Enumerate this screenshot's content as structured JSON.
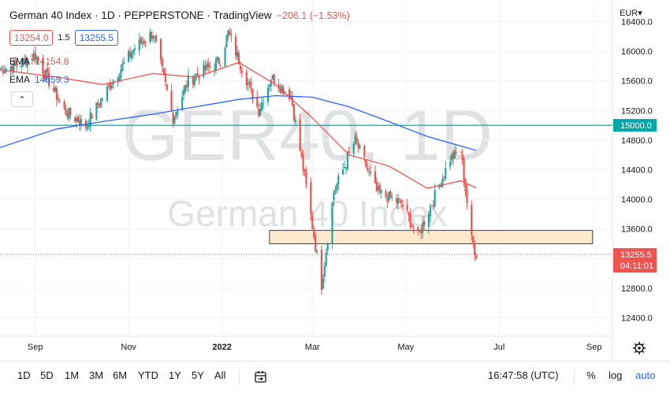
{
  "header": {
    "title": "German 40 Index · 1D · PEPPERSTONE · TradingView",
    "change": "−206.1 (−1.53%)",
    "sell_price": "13254.0",
    "spread": "1.5",
    "buy_price": "13255.5"
  },
  "ema_legend": [
    {
      "label": "EMA",
      "value": "14154.8",
      "color": "#ef5350"
    },
    {
      "label": "EMA",
      "value": "14659.3",
      "color": "#2962ff"
    }
  ],
  "collapse_glyph": "⌃",
  "currency": "EUR▾",
  "watermark": {
    "symbol": "GER40, 1D",
    "description": "German 40 Index"
  },
  "price_labels": {
    "level": "15000.0",
    "last": "13255.5",
    "countdown": "04:11:01"
  },
  "colors": {
    "up": "#26a69a",
    "down": "#ef5350",
    "ema_fast": "#ef5350",
    "ema_slow": "#2962ff",
    "level_line": "#00a8a8",
    "zone_fill": "#ffe9cc",
    "zone_border": "#444444"
  },
  "bottom_bar": {
    "timeframes": [
      "1D",
      "5D",
      "1M",
      "3M",
      "6M",
      "YTD",
      "1Y",
      "5Y",
      "All"
    ],
    "clock": "16:47:58 (UTC)",
    "percent": "%",
    "log": "log",
    "auto": "auto",
    "compare_icon": "calendar-range-icon"
  },
  "chart_data": {
    "type": "candlestick",
    "y_axis": {
      "ticks": [
        12400,
        12800,
        13200,
        13600,
        14000,
        14400,
        14800,
        15200,
        15600,
        16000,
        16400
      ],
      "tick_labels": [
        "12400.0",
        "12800.0",
        "13200.0",
        "13600.0",
        "14000.0",
        "14400.0",
        "14800.0",
        "15200.0",
        "15600.0",
        "16000.0",
        "16400.0"
      ],
      "range": [
        12150,
        16650
      ]
    },
    "x_axis": {
      "tick_labels": [
        "Sep",
        "Nov",
        "2022",
        "Mar",
        "May",
        "Jul",
        "Sep"
      ],
      "range_dates": [
        "2021-08-09",
        "2022-09-13"
      ],
      "tick_dates": [
        "2021-09-01",
        "2021-11-01",
        "2022-01-01",
        "2022-03-01",
        "2022-05-01",
        "2022-07-01",
        "2022-09-01"
      ]
    },
    "horizontal_line": 15000,
    "support_zone": {
      "low": 13400,
      "high": 13580,
      "from": "2022-02-01",
      "to": "2022-08-31"
    },
    "last_price": 13255.5,
    "closes_anchor": [
      [
        "2021-08-09",
        15760
      ],
      [
        "2021-08-20",
        15810
      ],
      [
        "2021-09-01",
        15950
      ],
      [
        "2021-09-20",
        15200
      ],
      [
        "2021-10-04",
        15000
      ],
      [
        "2021-10-20",
        15550
      ],
      [
        "2021-11-05",
        16050
      ],
      [
        "2021-11-17",
        16250
      ],
      [
        "2021-11-30",
        15100
      ],
      [
        "2021-12-10",
        15600
      ],
      [
        "2021-12-31",
        15880
      ],
      [
        "2022-01-05",
        16250
      ],
      [
        "2022-01-25",
        15200
      ],
      [
        "2022-02-02",
        15650
      ],
      [
        "2022-02-15",
        15400
      ],
      [
        "2022-02-24",
        14300
      ],
      [
        "2022-03-07",
        12850
      ],
      [
        "2022-03-15",
        14100
      ],
      [
        "2022-03-29",
        14800
      ],
      [
        "2022-04-12",
        14100
      ],
      [
        "2022-04-28",
        13950
      ],
      [
        "2022-05-09",
        13500
      ],
      [
        "2022-05-30",
        14550
      ],
      [
        "2022-06-06",
        14650
      ],
      [
        "2022-06-13",
        13450
      ],
      [
        "2022-06-16",
        13255
      ]
    ],
    "ema_fast": [
      [
        "2021-08-09",
        15750
      ],
      [
        "2021-09-15",
        15650
      ],
      [
        "2021-10-15",
        15550
      ],
      [
        "2021-11-17",
        15700
      ],
      [
        "2021-12-15",
        15650
      ],
      [
        "2022-01-12",
        15850
      ],
      [
        "2022-02-05",
        15550
      ],
      [
        "2022-03-01",
        15100
      ],
      [
        "2022-03-25",
        14600
      ],
      [
        "2022-04-20",
        14450
      ],
      [
        "2022-05-15",
        14150
      ],
      [
        "2022-06-06",
        14250
      ],
      [
        "2022-06-16",
        14154.8
      ]
    ],
    "ema_slow": [
      [
        "2021-08-09",
        14700
      ],
      [
        "2021-09-15",
        14950
      ],
      [
        "2021-10-15",
        15050
      ],
      [
        "2021-11-17",
        15150
      ],
      [
        "2021-12-15",
        15250
      ],
      [
        "2022-01-12",
        15350
      ],
      [
        "2022-02-05",
        15400
      ],
      [
        "2022-03-01",
        15380
      ],
      [
        "2022-03-25",
        15250
      ],
      [
        "2022-04-20",
        15050
      ],
      [
        "2022-05-15",
        14850
      ],
      [
        "2022-06-06",
        14720
      ],
      [
        "2022-06-16",
        14659.3
      ]
    ]
  }
}
